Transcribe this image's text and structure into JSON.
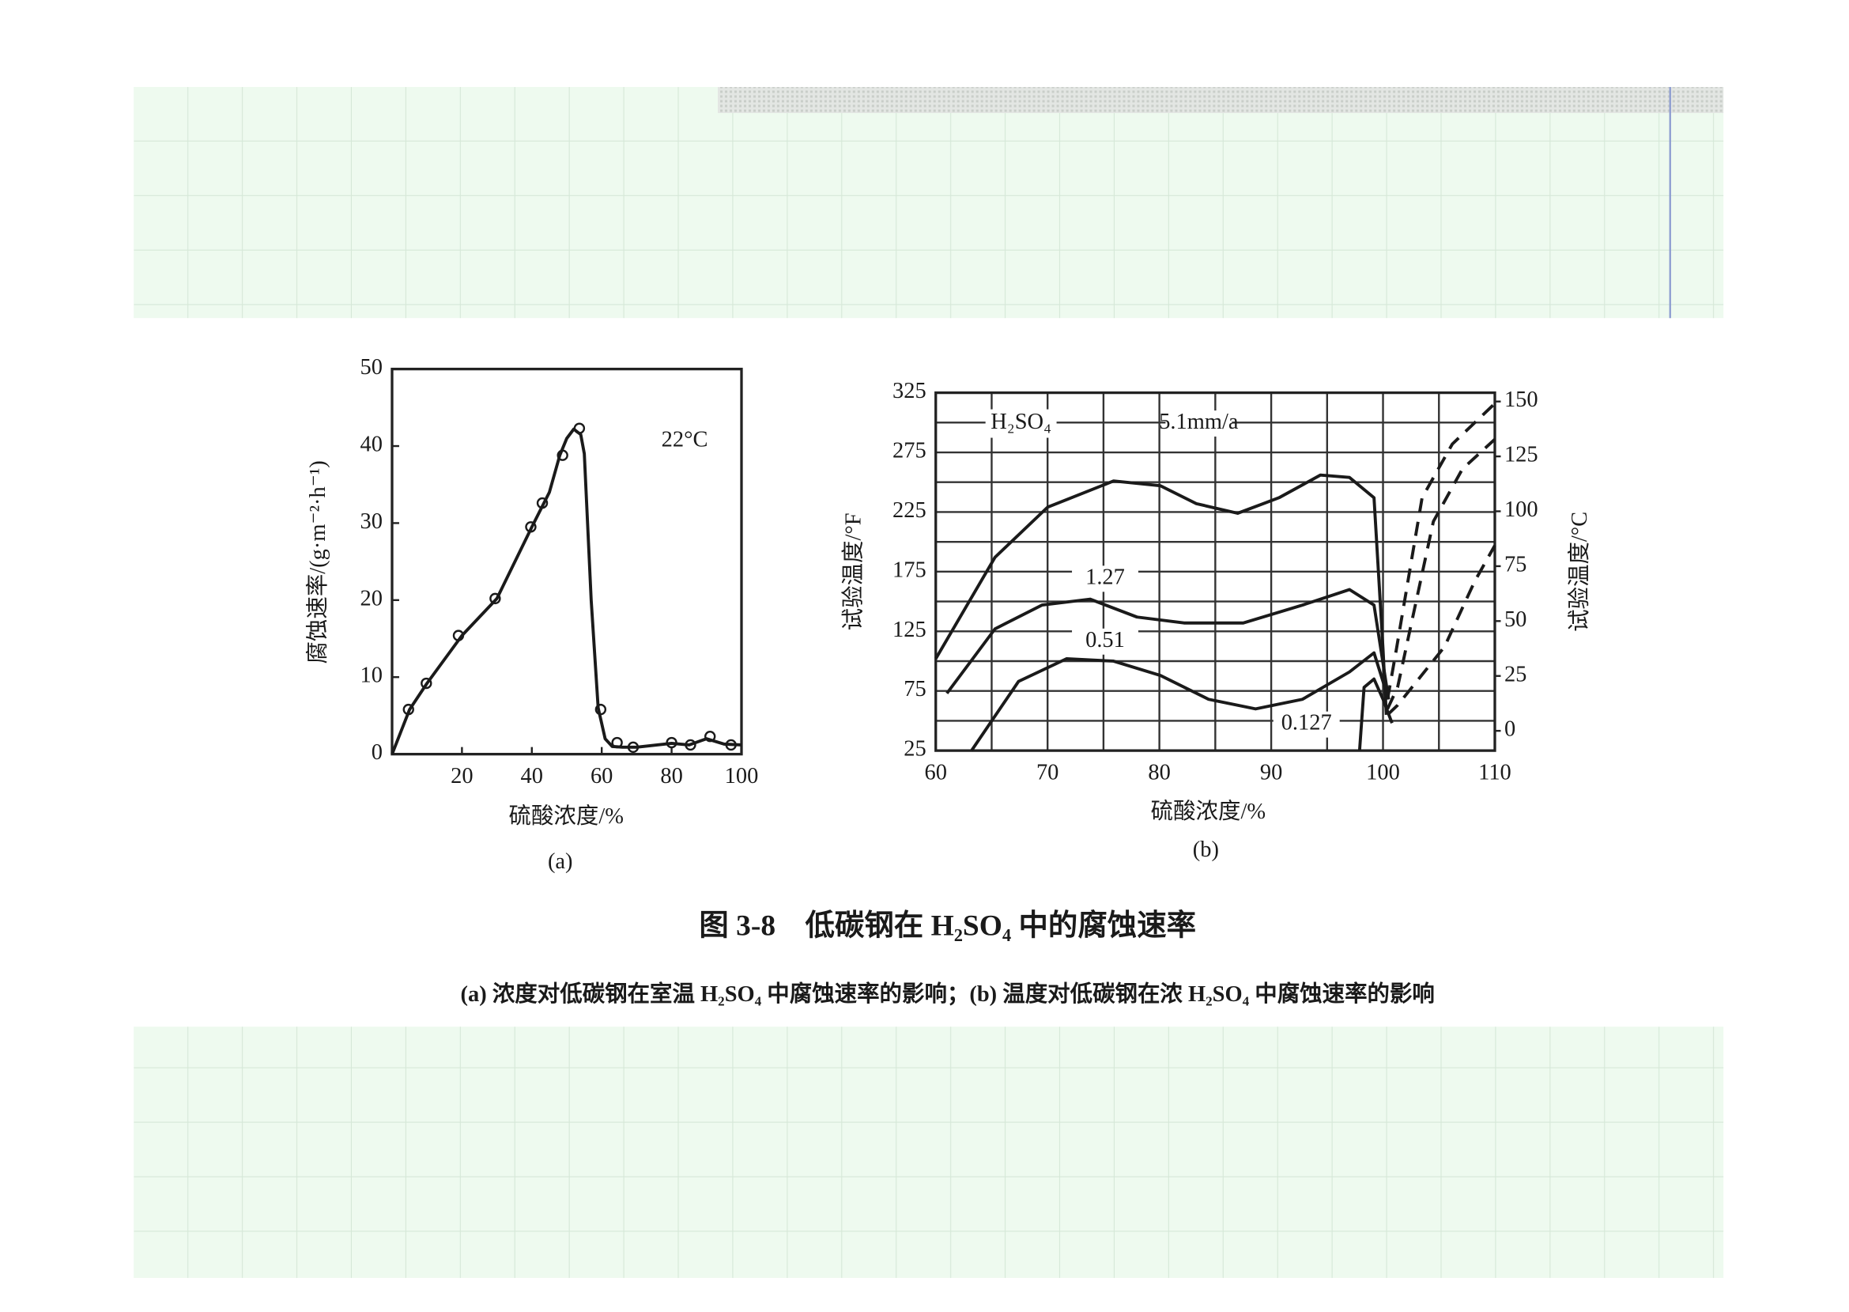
{
  "figure": {
    "title": "图 3-8　低碳钢在 H₂SO₄ 中的腐蚀速率",
    "caption": "(a) 浓度对低碳钢在室温 H₂SO₄ 中腐蚀速率的影响；(b) 温度对低碳钢在浓 H₂SO₄ 中腐蚀速率的影响"
  },
  "chart_data": [
    {
      "type": "line",
      "subtitle": "(a)",
      "x_label": "硫酸浓度/%",
      "y_label": "腐蚀速率/(g·m⁻²·h⁻¹)",
      "annotations": [
        "22°C"
      ],
      "color": "#1a1a1a",
      "grid": false,
      "xlim": [
        0,
        100
      ],
      "xticks": [
        20,
        40,
        60,
        80,
        100
      ],
      "ylim": [
        0,
        50
      ],
      "yticks": [
        0,
        10,
        20,
        30,
        40,
        50
      ],
      "series": [
        {
          "markers_only": true,
          "x": [
            4.7,
            9.8,
            19,
            29.5,
            39.7,
            43,
            48.8,
            53.6,
            59.7,
            64.4,
            69,
            80,
            85.4,
            91,
            97
          ],
          "values": [
            5.8,
            9.2,
            15.4,
            20.2,
            29.5,
            32.6,
            38.8,
            42.3,
            5.8,
            1.5,
            0.9,
            1.5,
            1.2,
            2.3,
            1.2
          ]
        },
        {
          "x": [
            0,
            5,
            10,
            20,
            30,
            40,
            45,
            48,
            50,
            52,
            54,
            55,
            57,
            59,
            61,
            63,
            66,
            70,
            80,
            85,
            90,
            95,
            100
          ],
          "values": [
            0,
            5.8,
            9.2,
            15.4,
            20.2,
            29.5,
            34,
            38.8,
            41,
            42.2,
            41.5,
            39,
            20,
            6,
            2,
            1,
            0.9,
            0.9,
            1.4,
            1.2,
            2,
            1.3,
            1.2
          ]
        }
      ]
    },
    {
      "type": "line",
      "subtitle": "(b)",
      "x_label": "硫酸浓度/%",
      "y_label": "试验温度/°F",
      "y2_label": "试验温度/°C",
      "annotations": [
        "H₂SO₄"
      ],
      "color": "#1a1a1a",
      "grid": true,
      "x_minor_grid": [
        65,
        75,
        85,
        95,
        105
      ],
      "y_minor_grid": [
        50,
        100,
        150,
        200,
        250,
        300
      ],
      "xlim": [
        60,
        110
      ],
      "xticks": [
        60,
        70,
        80,
        90,
        100,
        110
      ],
      "ylim": [
        25,
        325
      ],
      "yticks": [
        25,
        75,
        125,
        175,
        225,
        275,
        325
      ],
      "y2lim": [
        -9,
        154
      ],
      "y2ticks": [
        0,
        25,
        50,
        75,
        100,
        125,
        150
      ],
      "series": [
        {
          "name": "5.1mm/a",
          "x": [
            60,
            65.3,
            70,
            75.9,
            80.1,
            83.3,
            87,
            90.7,
            94.4,
            97,
            99.2,
            100,
            100.3
          ],
          "values": [
            102,
            187,
            229,
            251,
            247,
            232,
            224,
            237,
            256,
            254,
            237,
            110,
            55
          ]
        },
        {
          "name": "1.27",
          "x": [
            61,
            65.3,
            69.5,
            73.8,
            78,
            82.2,
            87.5,
            92.8,
            97,
            99.2,
            100.5
          ],
          "values": [
            73,
            127,
            147,
            152,
            137,
            132,
            132,
            147,
            160,
            147,
            68
          ]
        },
        {
          "name": "0.51",
          "x": [
            63.2,
            67.4,
            71.7,
            75.9,
            80.1,
            84.4,
            88.6,
            92.8,
            97,
            99.2,
            100.5
          ],
          "values": [
            25,
            83,
            102,
            100,
            88,
            68,
            60,
            68,
            91,
            107,
            68
          ]
        },
        {
          "name": "0.127",
          "x": [
            97.9,
            98.3,
            99.2,
            100,
            100.8
          ],
          "values": [
            25,
            78,
            85,
            68,
            48
          ]
        },
        {
          "dashed": true,
          "x": [
            100.4,
            101.2,
            103.5,
            106.2,
            110
          ],
          "values": [
            68,
            110,
            237,
            282,
            316
          ]
        },
        {
          "dashed": true,
          "x": [
            100.4,
            101.3,
            104.5,
            107.1,
            110
          ],
          "values": [
            60,
            78,
            217,
            261,
            286
          ]
        },
        {
          "dashed": true,
          "x": [
            100.4,
            101.3,
            105.5,
            108.2,
            110
          ],
          "values": [
            55,
            63,
            112,
            167,
            197
          ]
        }
      ]
    }
  ]
}
